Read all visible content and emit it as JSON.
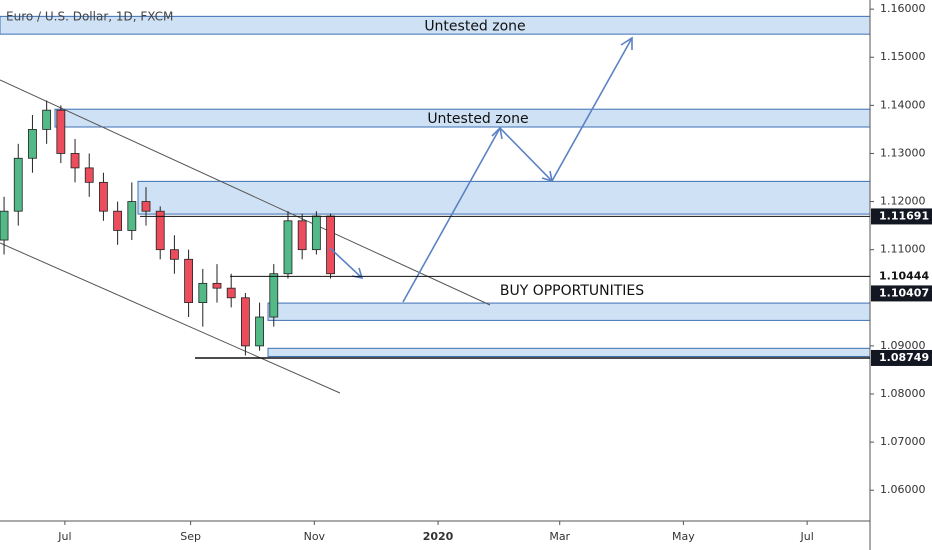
{
  "chart_data": {
    "type": "candlestick",
    "title": "Euro / U.S. Dollar, 1D, FXCM",
    "x": [
      0,
      7,
      14,
      21,
      28,
      35,
      42,
      49,
      56,
      63,
      70,
      77,
      84,
      91,
      98,
      105,
      112,
      119,
      126,
      133,
      140,
      147,
      154,
      161
    ],
    "open": [
      1.112,
      1.118,
      1.129,
      1.135,
      1.139,
      1.13,
      1.127,
      1.124,
      1.118,
      1.114,
      1.12,
      1.118,
      1.11,
      1.108,
      1.099,
      1.103,
      1.102,
      1.1,
      1.09,
      1.096,
      1.105,
      1.116,
      1.11,
      1.117
    ],
    "close": [
      1.118,
      1.129,
      1.135,
      1.139,
      1.13,
      1.127,
      1.124,
      1.118,
      1.114,
      1.12,
      1.118,
      1.11,
      1.108,
      1.099,
      1.103,
      1.102,
      1.1,
      1.09,
      1.096,
      1.105,
      1.116,
      1.11,
      1.117,
      1.105
    ],
    "high": [
      1.121,
      1.132,
      1.138,
      1.141,
      1.14,
      1.133,
      1.13,
      1.126,
      1.12,
      1.124,
      1.123,
      1.119,
      1.113,
      1.11,
      1.106,
      1.107,
      1.105,
      1.101,
      1.099,
      1.107,
      1.118,
      1.1175,
      1.118,
      1.1175
    ],
    "low": [
      1.109,
      1.115,
      1.126,
      1.132,
      1.128,
      1.124,
      1.121,
      1.116,
      1.111,
      1.112,
      1.115,
      1.108,
      1.105,
      1.096,
      1.094,
      1.099,
      1.098,
      1.088,
      1.089,
      1.094,
      1.104,
      1.108,
      1.109,
      1.104
    ],
    "up_color": "#53b987",
    "down_color": "#eb4d5c",
    "xlim": [
      -2,
      427
    ],
    "xticks": [
      {
        "value": 30,
        "label": "Jul"
      },
      {
        "value": 92,
        "label": "Sep"
      },
      {
        "value": 153,
        "label": "Nov"
      },
      {
        "value": 214,
        "label": "2020"
      },
      {
        "value": 274,
        "label": "Mar"
      },
      {
        "value": 335,
        "label": "May"
      },
      {
        "value": 396,
        "label": "Jul"
      }
    ],
    "ylim": [
      1.0536,
      1.1619
    ],
    "yticks": [
      {
        "value": 1.06,
        "label": "1.06000"
      },
      {
        "value": 1.07,
        "label": "1.07000"
      },
      {
        "value": 1.08,
        "label": "1.08000"
      },
      {
        "value": 1.09,
        "label": "1.09000"
      },
      {
        "value": 1.11,
        "label": "1.11000"
      },
      {
        "value": 1.12,
        "label": "1.12000"
      },
      {
        "value": 1.13,
        "label": "1.13000"
      },
      {
        "value": 1.14,
        "label": "1.14000"
      },
      {
        "value": 1.15,
        "label": "1.15000"
      },
      {
        "value": 1.16,
        "label": "1.16000"
      }
    ],
    "zones": [
      {
        "low": 1.1548,
        "high": 1.1585,
        "label": "Untested zone"
      },
      {
        "low": 1.1355,
        "high": 1.1392,
        "label": "Untested zone"
      },
      {
        "low": 1.1174,
        "high": 1.1242
      },
      {
        "low": 1.0953,
        "high": 1.0989
      },
      {
        "low": 1.0878,
        "high": 1.0895
      }
    ],
    "zone_color": "#cfe2f5",
    "annotation": "BUY OPPORTUNITIES",
    "price_labels": [
      {
        "value": 1.11691,
        "label": "1.11691",
        "boxed": true
      },
      {
        "value": 1.10444,
        "label": "1.10444",
        "boxed": false
      },
      {
        "value": 1.10407,
        "label": "1.10407",
        "boxed": true
      },
      {
        "value": 1.08749,
        "label": "1.08749",
        "boxed": true
      }
    ]
  }
}
